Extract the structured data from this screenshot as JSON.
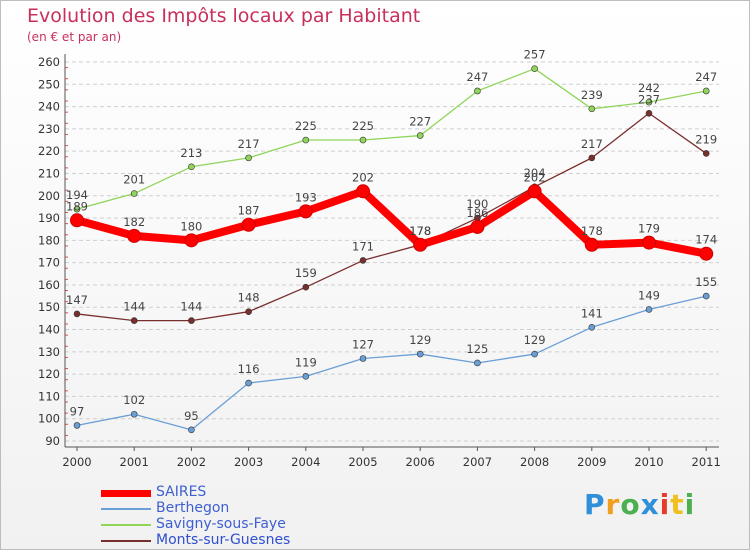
{
  "chart_data": {
    "type": "line",
    "title": "Evolution des Impôts locaux par Habitant",
    "subtitle": "(en € et par an)",
    "xlabel": "",
    "ylabel": "",
    "x": [
      "2000",
      "2001",
      "2002",
      "2003",
      "2004",
      "2005",
      "2006",
      "2007",
      "2008",
      "2009",
      "2010",
      "2011"
    ],
    "ylim": [
      90,
      260
    ],
    "yticks": [
      90,
      100,
      110,
      120,
      130,
      140,
      150,
      160,
      170,
      180,
      190,
      200,
      210,
      220,
      230,
      240,
      250,
      260
    ],
    "grid": "horizontal-dashed",
    "legend_position": "bottom-left",
    "series": [
      {
        "name": "SAIRES",
        "color": "#ff0000",
        "values": [
          189,
          182,
          180,
          187,
          193,
          202,
          178,
          186,
          202,
          178,
          179,
          174
        ]
      },
      {
        "name": "Berthegon",
        "color": "#6a9fd6",
        "values": [
          97,
          102,
          95,
          116,
          119,
          127,
          129,
          125,
          129,
          141,
          149,
          155
        ]
      },
      {
        "name": "Savigny-sous-Faye",
        "color": "#90d55a",
        "values": [
          194,
          201,
          213,
          217,
          225,
          225,
          227,
          247,
          257,
          239,
          242,
          247
        ]
      },
      {
        "name": "Monts-sur-Guesnes",
        "color": "#7a2f2f",
        "values": [
          147,
          144,
          144,
          148,
          159,
          171,
          178,
          190,
          204,
          217,
          237,
          219
        ]
      }
    ]
  },
  "logo": {
    "letters": [
      "P",
      "r",
      "o",
      "x",
      "i",
      "t",
      "i"
    ],
    "colors": [
      "#2f8fd8",
      "#f0a020",
      "#4caf50",
      "#2f8fd8",
      "#e63a2a",
      "#f0c020",
      "#4caf50"
    ]
  }
}
